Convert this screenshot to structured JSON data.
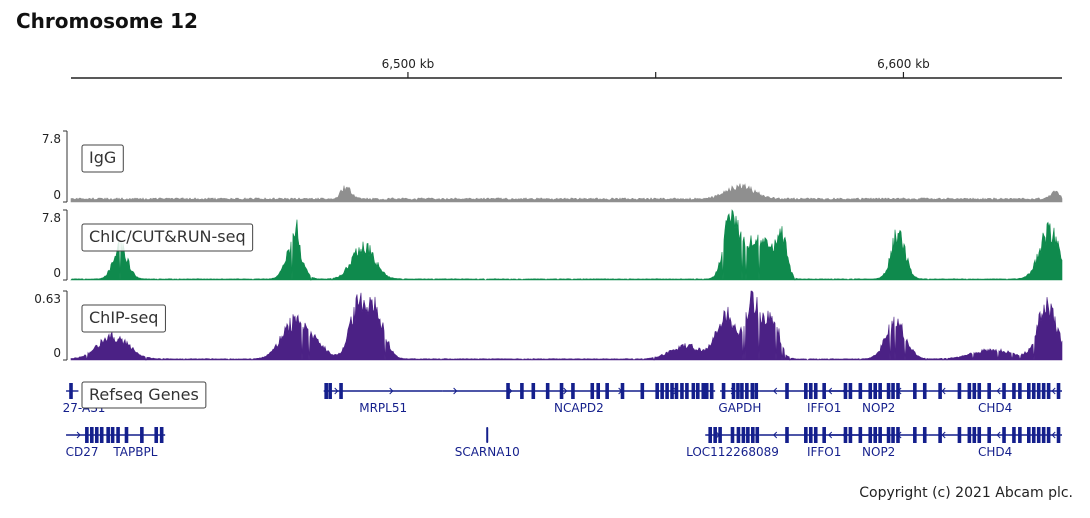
{
  "title": "Chromosome 12",
  "copyright": "Copyright (c) 2021 Abcam plc.",
  "chart_data": {
    "type": "area",
    "x_unit": "kb",
    "xlim": [
      6432,
      6632
    ],
    "ruler": {
      "labels": [
        {
          "pos": 6500,
          "text": "6,500 kb"
        },
        {
          "pos": 6600,
          "text": "6,600 kb"
        }
      ],
      "unlabeled_ticks": [
        6400,
        6550
      ]
    },
    "tracks": [
      {
        "name": "IgG",
        "color": "#8f8f8f",
        "ymax_label": "7.8",
        "ymin_label": "0",
        "ymax": 7.8,
        "baseline": 0.25,
        "noise": 0.35,
        "noise_seed": 11,
        "peaks": [
          {
            "x": 6487.5,
            "height": 1.3,
            "width": 1.0
          },
          {
            "x": 6567.0,
            "height": 1.4,
            "width": 2.8
          },
          {
            "x": 6630.5,
            "height": 0.8,
            "width": 0.8
          }
        ]
      },
      {
        "name": "ChIC/CUT&RUN-seq",
        "color": "#0f8a4d",
        "ymax_label": "7.8",
        "ymin_label": "0",
        "ymax": 7.8,
        "baseline": 0.06,
        "noise": 0.08,
        "noise_seed": 23,
        "peaks": [
          {
            "x": 6442.0,
            "height": 3.6,
            "width": 1.4
          },
          {
            "x": 6477.0,
            "height": 3.9,
            "width": 1.5
          },
          {
            "x": 6477.5,
            "height": 2.4,
            "width": 0.4
          },
          {
            "x": 6491.0,
            "height": 3.7,
            "width": 2.2
          },
          {
            "x": 6565.0,
            "height": 6.5,
            "width": 1.3
          },
          {
            "x": 6568.5,
            "height": 3.8,
            "width": 2.2
          },
          {
            "x": 6572.5,
            "height": 3.2,
            "width": 1.6
          },
          {
            "x": 6575.5,
            "height": 4.4,
            "width": 1.0
          },
          {
            "x": 6599.0,
            "height": 5.0,
            "width": 1.4
          },
          {
            "x": 6629.5,
            "height": 5.2,
            "width": 2.0
          }
        ]
      },
      {
        "name": "ChIP-seq",
        "color": "#4b2185",
        "ymax_label": "0.63",
        "ymin_label": "0",
        "ymax": 0.63,
        "baseline": 0.05,
        "noise": 0.1,
        "noise_seed": 37,
        "peaks": [
          {
            "x": 6440.5,
            "height": 0.2,
            "width": 3.0
          },
          {
            "x": 6477.0,
            "height": 0.32,
            "width": 2.5
          },
          {
            "x": 6481.5,
            "height": 0.12,
            "width": 2.0
          },
          {
            "x": 6490.0,
            "height": 0.44,
            "width": 1.8
          },
          {
            "x": 6493.5,
            "height": 0.38,
            "width": 1.8
          },
          {
            "x": 6564.0,
            "height": 0.4,
            "width": 1.8
          },
          {
            "x": 6569.5,
            "height": 0.52,
            "width": 1.6
          },
          {
            "x": 6573.5,
            "height": 0.36,
            "width": 1.4
          },
          {
            "x": 6556.0,
            "height": 0.12,
            "width": 3.0
          },
          {
            "x": 6598.5,
            "height": 0.33,
            "width": 2.0
          },
          {
            "x": 6629.0,
            "height": 0.5,
            "width": 1.9
          },
          {
            "x": 6618.0,
            "height": 0.08,
            "width": 4.0
          }
        ]
      }
    ],
    "genes_track": {
      "name": "Refseq Genes",
      "color": "#141f8c",
      "rows": [
        [
          {
            "label": "27-AS1",
            "start": 6431,
            "end": 6433.5,
            "strand": "+",
            "exons": [
              6432.0
            ]
          },
          {
            "label": "MRPL51",
            "start": 6483,
            "end": 6507,
            "strand": "+",
            "exons": [
              6483.5,
              6484.3,
              6486.5
            ]
          },
          {
            "label": "NCAPD2",
            "start": 6507,
            "end": 6562,
            "strand": "+",
            "exons": [
              6520.2,
              6523.0,
              6525.3,
              6528.2,
              6531.0,
              6533.3,
              6537.2,
              6538.4,
              6540.2,
              6543.3,
              6547.3,
              6550.3,
              6551.3,
              6552.3,
              6553.3,
              6554.2,
              6555.3,
              6556.3,
              6557.6,
              6558.5,
              6559.6,
              6560.3,
              6561.3
            ]
          },
          {
            "label": "GAPDH",
            "start": 6563,
            "end": 6571,
            "strand": "+",
            "exons": [
              6563.7,
              6565.7,
              6566.6,
              6567.4,
              6568.4,
              6569.5,
              6570.3
            ]
          },
          {
            "label": "IFFO1",
            "start": 6571,
            "end": 6597,
            "strand": "-",
            "exons": [
              6576.5,
              6580.3,
              6581.3,
              6582.3,
              6584.0
            ]
          },
          {
            "label": "NOP2",
            "start": 6585,
            "end": 6605,
            "strand": "-",
            "exons": [
              6588.3,
              6589.3,
              6591.3,
              6593.3,
              6594.3,
              6595.3,
              6597.0,
              6597.9,
              6598.9,
              6602.3,
              6604.3
            ]
          },
          {
            "label": "CHD4",
            "start": 6605,
            "end": 6632,
            "strand": "-",
            "exons": [
              6607.4,
              6611.3,
              6613.3,
              6614.3,
              6615.3,
              6617.3,
              6620.3,
              6622.3,
              6623.5,
              6625.3,
              6626.3,
              6627.3,
              6628.3,
              6629.3,
              6631.3
            ]
          }
        ],
        [
          {
            "label": "CD27",
            "start": 6431,
            "end": 6439,
            "strand": "+",
            "exons": [
              6435.2,
              6436.2,
              6437.2,
              6438.2
            ]
          },
          {
            "label": "TAPBPL",
            "start": 6439,
            "end": 6451,
            "strand": "+",
            "exons": [
              6439.5,
              6440.4,
              6441.5,
              6443.2,
              6446.3,
              6449.2,
              6450.3
            ]
          },
          {
            "label": "SCARNA10",
            "start": 6515.8,
            "end": 6516.2,
            "strand": "",
            "exons": [
              6516.0
            ]
          },
          {
            "label": "LOC112268089",
            "start": 6560,
            "end": 6571,
            "strand": "+",
            "exons": [
              6561.0,
              6562.0,
              6563.0,
              6565.5,
              6566.7,
              6567.7,
              6568.6,
              6569.6,
              6570.5
            ]
          },
          {
            "label": "IFFO1",
            "start": 6571,
            "end": 6597,
            "strand": "-",
            "exons": [
              6576.5,
              6580.3,
              6581.3,
              6582.3,
              6584.0
            ]
          },
          {
            "label": "NOP2",
            "start": 6585,
            "end": 6605,
            "strand": "-",
            "exons": [
              6588.3,
              6589.3,
              6591.3,
              6593.3,
              6594.3,
              6595.3,
              6597.0,
              6597.9,
              6598.9,
              6602.3,
              6604.3
            ]
          },
          {
            "label": "CHD4",
            "start": 6605,
            "end": 6632,
            "strand": "-",
            "exons": [
              6607.4,
              6611.3,
              6613.3,
              6614.3,
              6615.3,
              6617.3,
              6620.3,
              6622.3,
              6623.5,
              6625.3,
              6626.3,
              6627.3,
              6628.3,
              6629.3,
              6631.3
            ]
          }
        ]
      ]
    }
  }
}
